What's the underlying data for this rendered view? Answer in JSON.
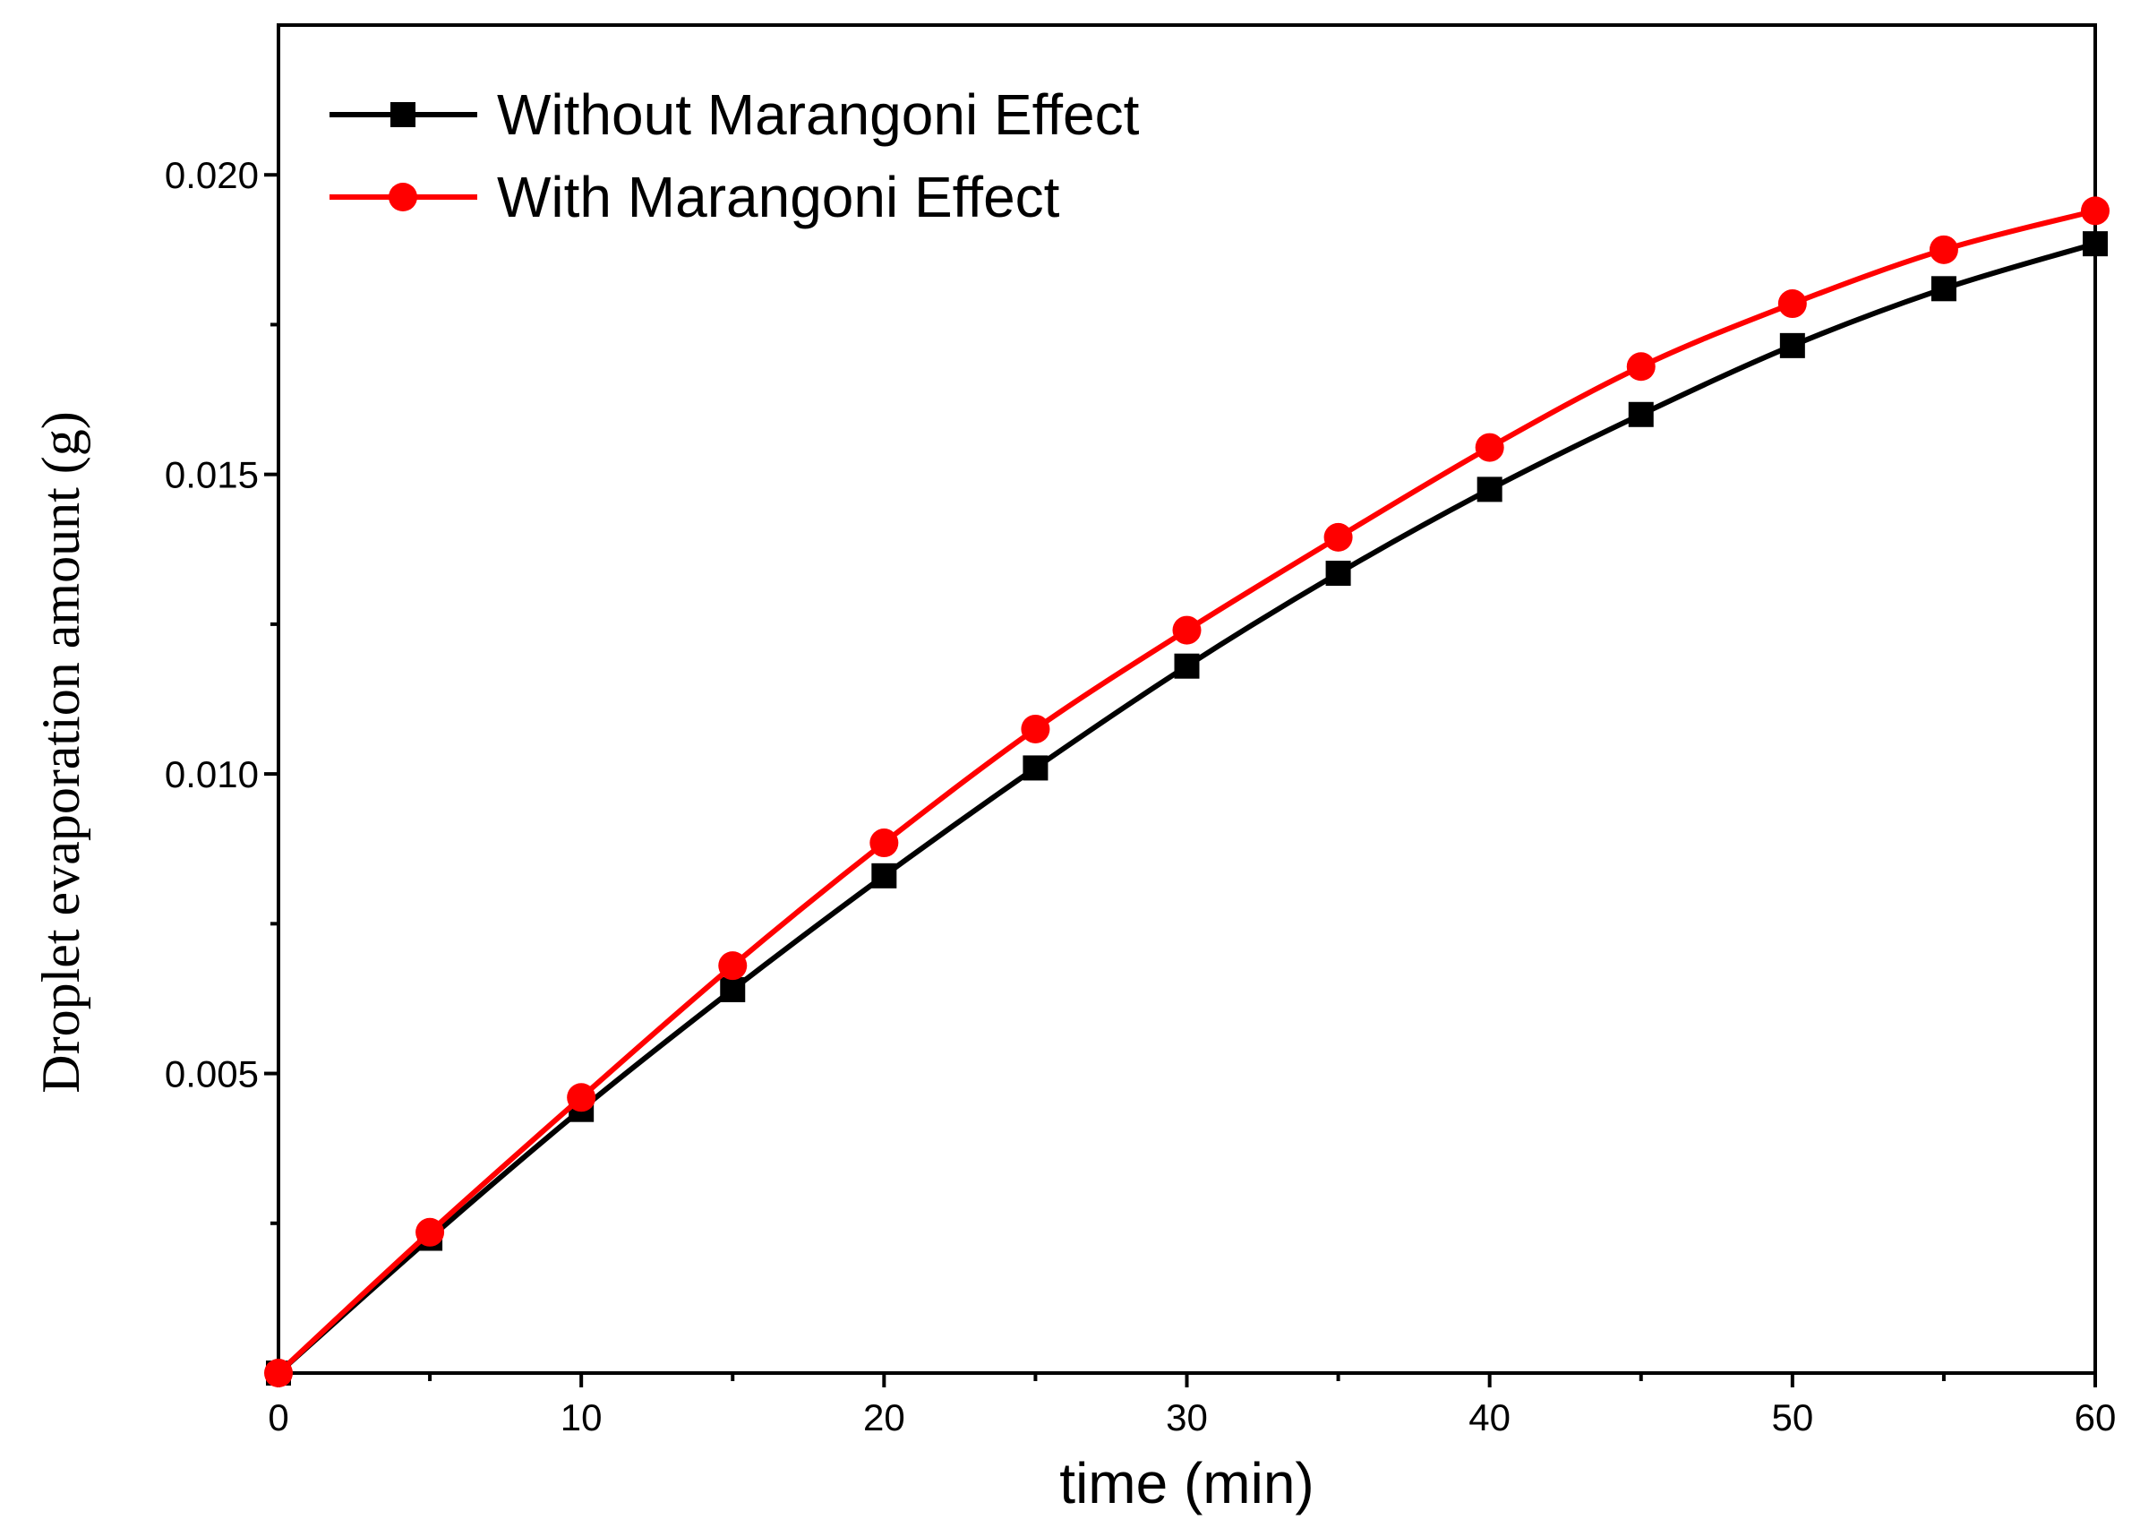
{
  "chart_data": {
    "type": "line",
    "title": "",
    "xlabel": "time (min)",
    "ylabel": "Droplet evaporation amount (g)",
    "xlim": [
      0,
      60
    ],
    "ylim": [
      0,
      0.0225
    ],
    "x_ticks": [
      0,
      10,
      20,
      30,
      40,
      50,
      60
    ],
    "x_tick_labels": [
      "0",
      "10",
      "20",
      "30",
      "40",
      "50",
      "60"
    ],
    "x_minor_ticks": [
      5,
      15,
      25,
      35,
      45,
      55
    ],
    "y_ticks": [
      0.005,
      0.01,
      0.015,
      0.02
    ],
    "y_tick_labels": [
      "0.005",
      "0.010",
      "0.015",
      "0.020"
    ],
    "y_minor_ticks": [
      0.0025,
      0.0075,
      0.0125,
      0.0175
    ],
    "grid": false,
    "legend_position": "top-left",
    "x": [
      0,
      5,
      10,
      15,
      20,
      25,
      30,
      35,
      40,
      45,
      50,
      55,
      60
    ],
    "series": [
      {
        "name": "Without Marangoni Effect",
        "color": "#000000",
        "marker": "square",
        "values": [
          0.0,
          0.00225,
          0.0044,
          0.0064,
          0.0083,
          0.0101,
          0.0118,
          0.01335,
          0.01475,
          0.016,
          0.01715,
          0.0181,
          0.01885
        ]
      },
      {
        "name": "With Marangoni Effect",
        "color": "#ff0000",
        "marker": "circle",
        "values": [
          0.0,
          0.00235,
          0.0046,
          0.0068,
          0.00885,
          0.01075,
          0.0124,
          0.01395,
          0.01545,
          0.0168,
          0.01785,
          0.01875,
          0.0194
        ]
      }
    ]
  }
}
